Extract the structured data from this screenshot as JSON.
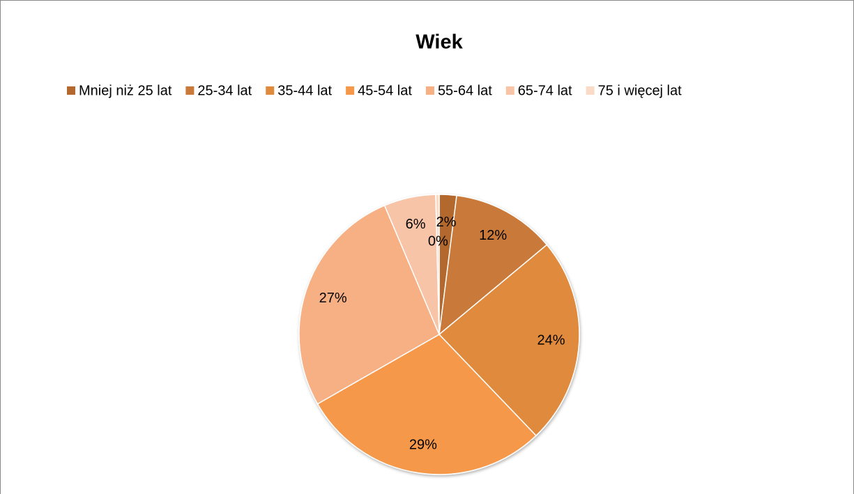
{
  "chart_data": {
    "type": "pie",
    "title": "Wiek",
    "categories": [
      "Mniej niż 25 lat",
      "25-34 lat",
      "35-44 lat",
      "45-54 lat",
      "55-64 lat",
      "65-74 lat",
      "75 i więcej lat"
    ],
    "values": [
      2,
      12,
      24,
      29,
      27,
      6,
      0.4
    ],
    "value_labels": [
      "2%",
      "12%",
      "24%",
      "29%",
      "27%",
      "6%",
      "0%"
    ],
    "colors": [
      "#b3682f",
      "#c97a3b",
      "#e08a3e",
      "#f5984a",
      "#f6b084",
      "#f8c4a8",
      "#fadbc8"
    ],
    "legend": "top"
  }
}
